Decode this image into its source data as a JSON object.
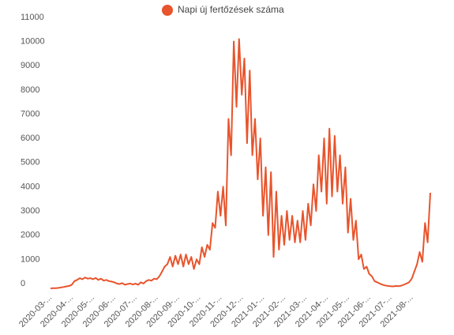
{
  "chart_data": {
    "type": "line",
    "categories": [
      "2020-03-...",
      null,
      null,
      null,
      null,
      null,
      null,
      null,
      "2020-04-...",
      null,
      null,
      null,
      null,
      null,
      null,
      null,
      "2020-05-...",
      null,
      null,
      null,
      null,
      null,
      null,
      null,
      "2020-06-...",
      null,
      null,
      null,
      null,
      null,
      null,
      null,
      "2020-07-...",
      null,
      null,
      null,
      null,
      null,
      null,
      null,
      "2020-08-...",
      null,
      null,
      null,
      null,
      null,
      null,
      null,
      "2020-09-...",
      null,
      null,
      null,
      null,
      null,
      null,
      null,
      "2020-10-...",
      null,
      null,
      null,
      null,
      null,
      null,
      null,
      "2020-11-...",
      null,
      null,
      null,
      null,
      null,
      null,
      null,
      "2020-12-...",
      null,
      null,
      null,
      null,
      null,
      null,
      null,
      "2021-01-...",
      null,
      null,
      null,
      null,
      null,
      null,
      null,
      "2021-02-...",
      null,
      null,
      null,
      null,
      null,
      null,
      null,
      "2021-03-...",
      null,
      null,
      null,
      null,
      null,
      null,
      null,
      "2021-04-...",
      null,
      null,
      null,
      null,
      null,
      null,
      null,
      "2021-05-...",
      null,
      null,
      null,
      null,
      null,
      null,
      null,
      "2021-06-...",
      null,
      null,
      null,
      null,
      null,
      null,
      null,
      "2021-07-...",
      null,
      null,
      null,
      null,
      null,
      null,
      null,
      "2021-08-...",
      null,
      null,
      null,
      null,
      null,
      null,
      null
    ],
    "series": [
      {
        "name": "Napi új fertőzések száma",
        "color": "#e8542c",
        "values": [
          0,
          5,
          10,
          20,
          40,
          60,
          80,
          100,
          150,
          300,
          350,
          420,
          380,
          450,
          400,
          420,
          380,
          430,
          350,
          400,
          320,
          350,
          300,
          280,
          250,
          200,
          180,
          220,
          150,
          180,
          200,
          160,
          200,
          150,
          250,
          200,
          300,
          350,
          320,
          400,
          380,
          500,
          700,
          900,
          1000,
          1300,
          900,
          1350,
          1000,
          1400,
          900,
          1400,
          1000,
          1300,
          800,
          1200,
          1000,
          1700,
          1300,
          1800,
          1600,
          2700,
          2500,
          4000,
          3000,
          4200,
          2600,
          7000,
          5500,
          10200,
          7500,
          10300,
          8000,
          9500,
          6000,
          9000,
          5500,
          7000,
          4500,
          6200,
          3000,
          5000,
          2200,
          4800,
          1300,
          4000,
          1600,
          3000,
          1800,
          3200,
          2000,
          3000,
          1900,
          2800,
          1900,
          3200,
          2000,
          3500,
          2600,
          4300,
          3200,
          5500,
          4000,
          6200,
          3500,
          6600,
          3800,
          6300,
          4000,
          5500,
          3500,
          5000,
          2300,
          3700,
          2000,
          2800,
          1200,
          1400,
          800,
          900,
          600,
          500,
          300,
          250,
          200,
          150,
          120,
          100,
          90,
          80,
          100,
          90,
          110,
          150,
          200,
          250,
          400,
          700,
          1000,
          1500,
          1100,
          2700,
          1900,
          3950
        ]
      }
    ],
    "ylim": [
      0,
      11000
    ],
    "yticks": [
      0,
      1000,
      2000,
      3000,
      4000,
      5000,
      6000,
      7000,
      8000,
      9000,
      10000,
      11000
    ],
    "grid": false
  }
}
